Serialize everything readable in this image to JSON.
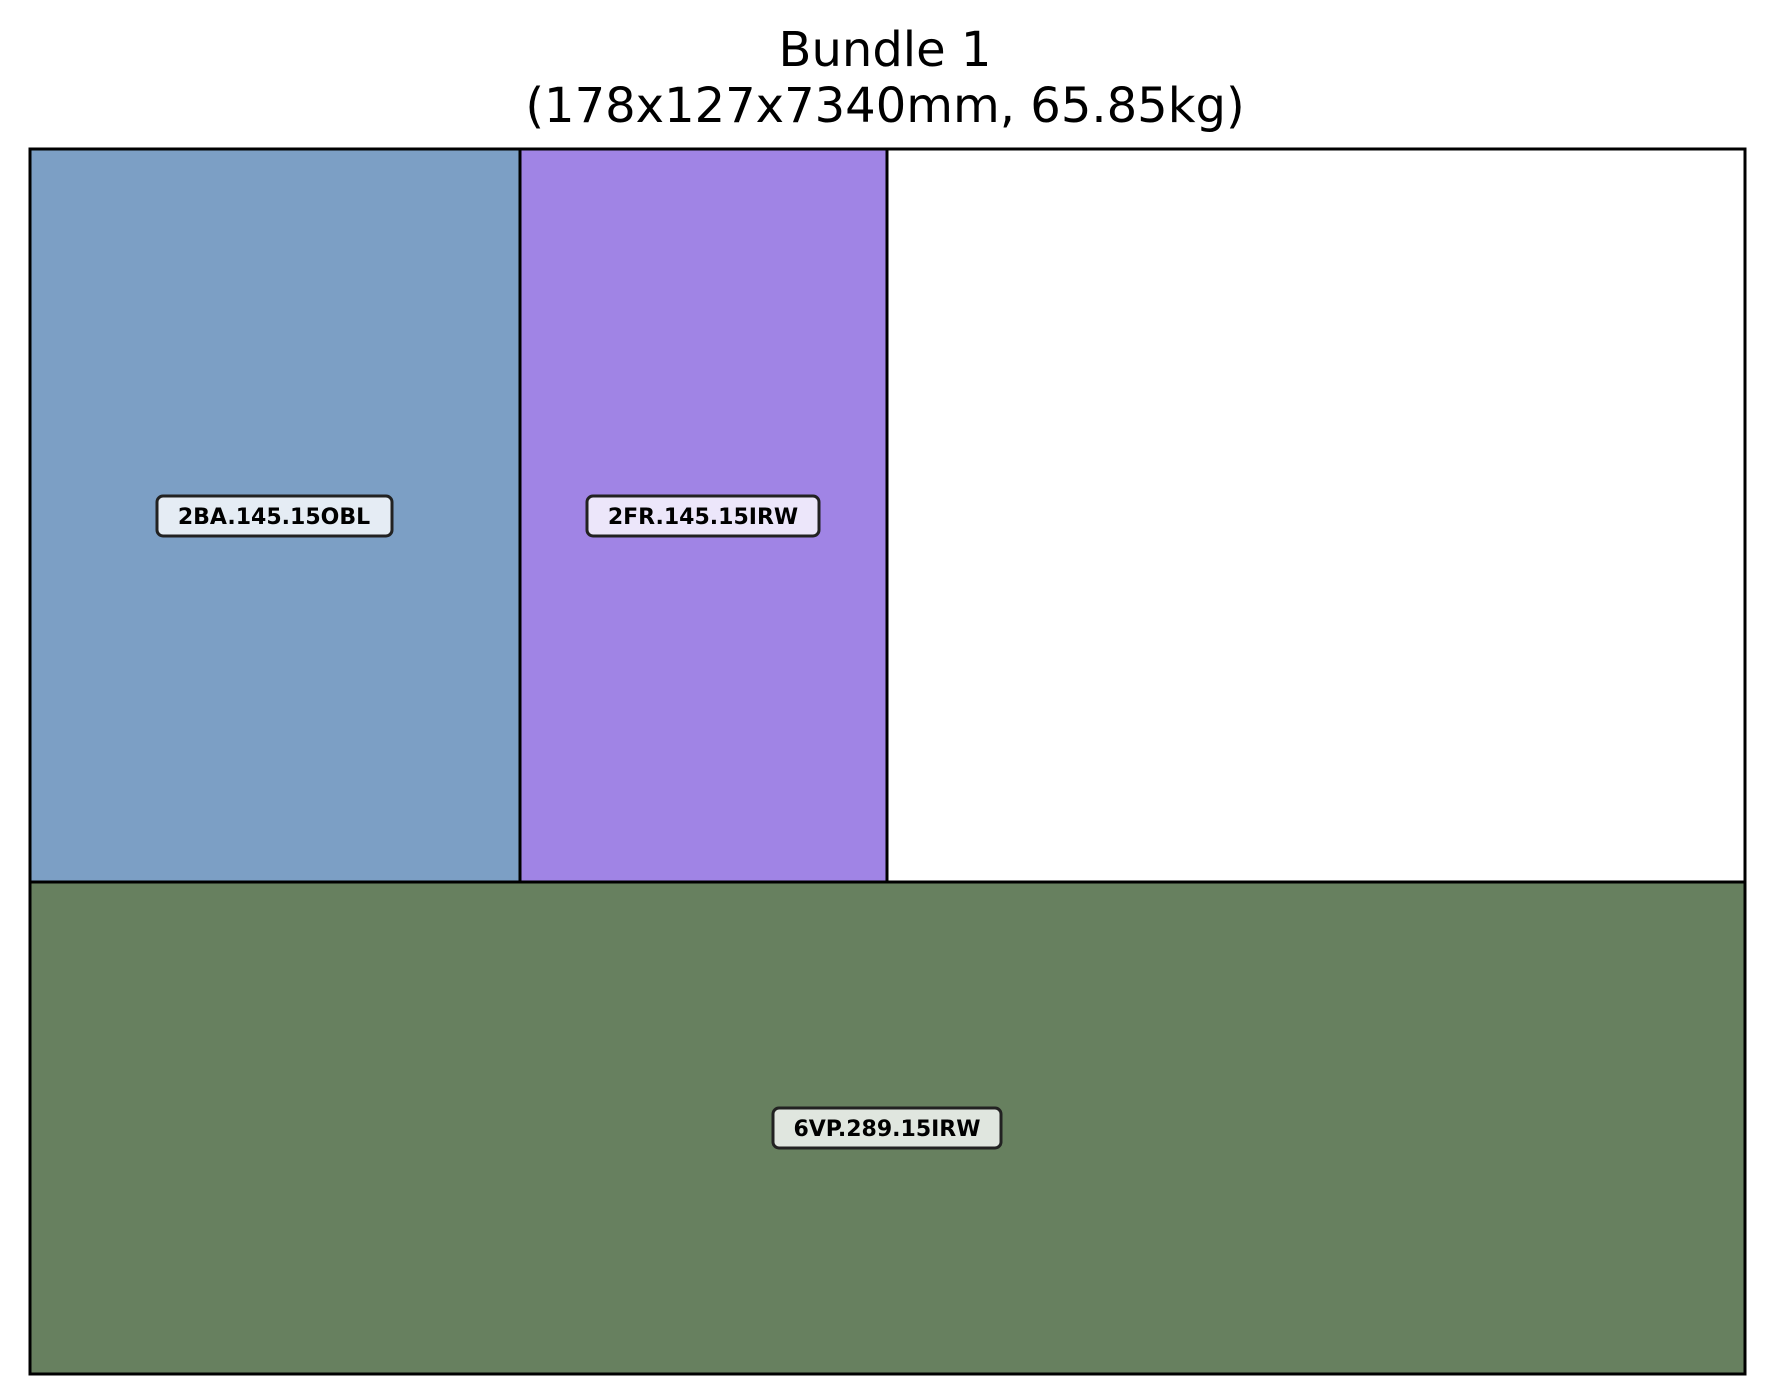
{
  "title": {
    "line1": "Bundle 1",
    "line2": "(178x127x7340mm, 65.85kg)"
  },
  "pieces": [
    {
      "label": "2BA.145.15OBL",
      "color": "#7c9fc5"
    },
    {
      "label": "2FR.145.15IRW",
      "color": "#a084e5"
    },
    {
      "label": "6VP.289.15IRW",
      "color": "#67805f"
    }
  ],
  "empty_space_color": "#ffffff",
  "outline_color": "#000000"
}
